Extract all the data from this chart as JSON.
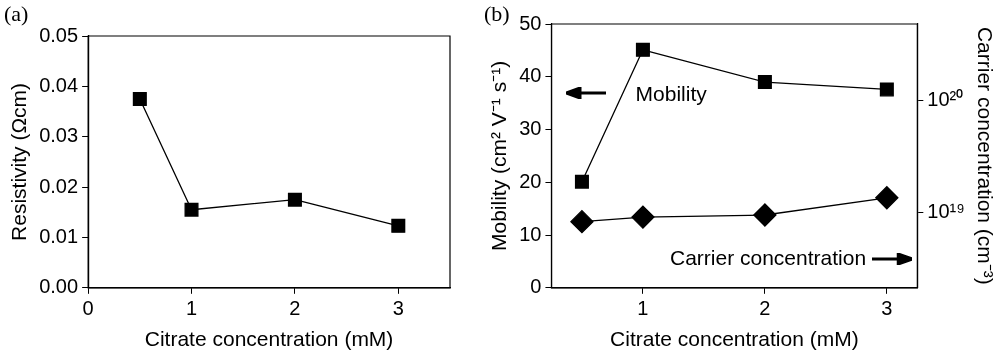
{
  "chart_data": [
    {
      "type": "line",
      "title": "(a)",
      "xlabel": "Citrate concentration (mM)",
      "ylabel": "Resistivity (Ωcm)",
      "x": [
        0.5,
        1,
        2,
        3
      ],
      "series": [
        {
          "color": "#000000",
          "values": [
            0.0375,
            0.0155,
            0.0175,
            0.0123
          ],
          "marker": "square"
        }
      ],
      "xlim": [
        0,
        3.5
      ],
      "xticks": [
        0,
        1,
        2,
        3
      ],
      "ylim": [
        0,
        0.05
      ],
      "yticks": [
        {
          "value": 0,
          "label": "0.00"
        },
        0.01,
        0.02,
        0.03,
        0.04,
        0.05
      ],
      "legend": false,
      "grid": false
    },
    {
      "type": "line",
      "title": "(b)",
      "xlabel": "Citrate concentration (mM)",
      "ylabel": "Mobility (cm² V⁻¹ s⁻¹)",
      "y2label": "Carrier concentration (cm⁻³)",
      "x": [
        0.5,
        1,
        2,
        3
      ],
      "series": [
        {
          "name": "Mobility",
          "color": "#000000",
          "values": [
            20.1,
            45.1,
            39.0,
            37.6
          ],
          "marker": "square"
        },
        {
          "name": "Carrier concentration",
          "color": "#000000",
          "values": [
            8.2e+18,
            9e+18,
            9.4e+18,
            1.34e+19
          ],
          "marker": "diamond",
          "axis": "y2"
        }
      ],
      "xlim": [
        0.25,
        3.25
      ],
      "xticks": [
        1,
        2,
        3
      ],
      "ylim": [
        0,
        50
      ],
      "yticks": [
        0,
        10,
        20,
        30,
        40,
        50
      ],
      "y2lim": [
        2.1e+18,
        4.8e+20
      ],
      "y2ticks": [
        {
          "value": 1e+19,
          "label": "10¹⁹"
        },
        {
          "value": 1e+20,
          "label": "10²⁰"
        }
      ],
      "log": "y2",
      "grid": false
    }
  ]
}
